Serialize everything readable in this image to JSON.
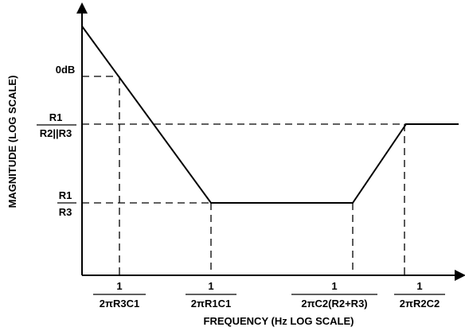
{
  "chart_data": {
    "type": "line",
    "xlabel": "FREQUENCY (Hz LOG SCALE)",
    "ylabel": "MAGNITUDE (LOG SCALE)",
    "x_scale": "log",
    "y_scale": "log",
    "x_ticks": [
      {
        "num": "1",
        "den": "2πR3C1"
      },
      {
        "num": "1",
        "den": "2πR1C1"
      },
      {
        "num": "1",
        "den": "2πC2(R2+R3)"
      },
      {
        "num": "1",
        "den": "2πR2C2"
      }
    ],
    "y_ticks": [
      {
        "text": "0dB"
      },
      {
        "num": "R1",
        "den": "R2||R3"
      },
      {
        "num": "R1",
        "den": "R3"
      }
    ],
    "grid": false,
    "legend": "none"
  }
}
